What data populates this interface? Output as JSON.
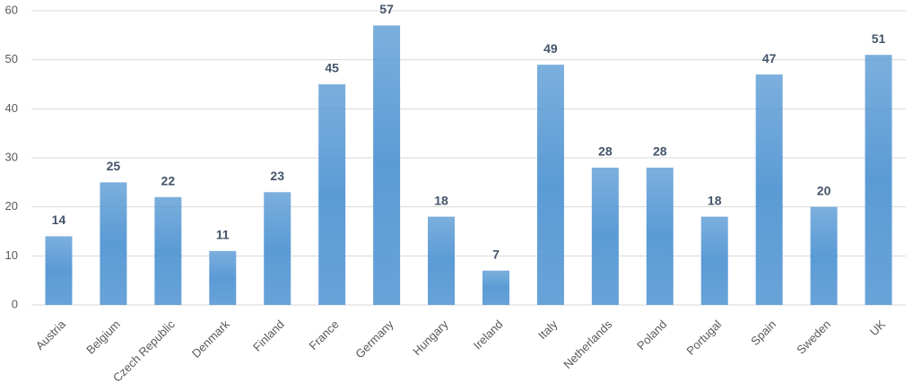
{
  "chart_data": {
    "type": "bar",
    "categories": [
      "Austria",
      "Belgium",
      "Czech Republic",
      "Denmark",
      "Finland",
      "France",
      "Germany",
      "Hungary",
      "Ireland",
      "Italy",
      "Netherlands",
      "Poland",
      "Portugal",
      "Spain",
      "Sweden",
      "UK"
    ],
    "values": [
      14,
      25,
      22,
      11,
      23,
      45,
      57,
      18,
      7,
      49,
      28,
      28,
      18,
      47,
      20,
      51
    ],
    "color": "#5b9bd5",
    "ylim": [
      0,
      60
    ],
    "yticks": [
      0,
      10,
      20,
      30,
      40,
      50,
      60
    ],
    "grid": true
  }
}
